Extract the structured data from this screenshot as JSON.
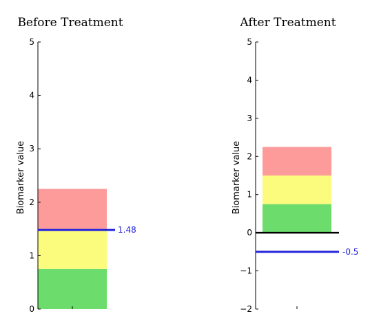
{
  "chart_data": [
    {
      "type": "bar",
      "title": "Before Treatment",
      "ylabel": "Biomarker value",
      "ylim": [
        0,
        5
      ],
      "yticks": [
        "0",
        "1",
        "2",
        "3",
        "4",
        "5"
      ],
      "bands": [
        {
          "from": 0,
          "to": 0.75,
          "color": "#6cdc6c"
        },
        {
          "from": 0.75,
          "to": 1.5,
          "color": "#fbfb7e"
        },
        {
          "from": 1.5,
          "to": 2.25,
          "color": "#fd9b9b"
        }
      ],
      "marker": {
        "value": 1.48,
        "label": "1.48",
        "color": "#2222dd"
      },
      "zero_line": false
    },
    {
      "type": "bar",
      "title": "After Treatment",
      "ylabel": "Biomarker value",
      "ylim": [
        -2,
        5
      ],
      "yticks": [
        "−2",
        "−1",
        "0",
        "1",
        "2",
        "3",
        "4",
        "5"
      ],
      "bands": [
        {
          "from": 0,
          "to": 0.75,
          "color": "#6cdc6c"
        },
        {
          "from": 0.75,
          "to": 1.5,
          "color": "#fbfb7e"
        },
        {
          "from": 1.5,
          "to": 2.25,
          "color": "#fd9b9b"
        }
      ],
      "marker": {
        "value": -0.5,
        "label": "-0.5",
        "color": "#2222dd"
      },
      "zero_line": true
    }
  ]
}
